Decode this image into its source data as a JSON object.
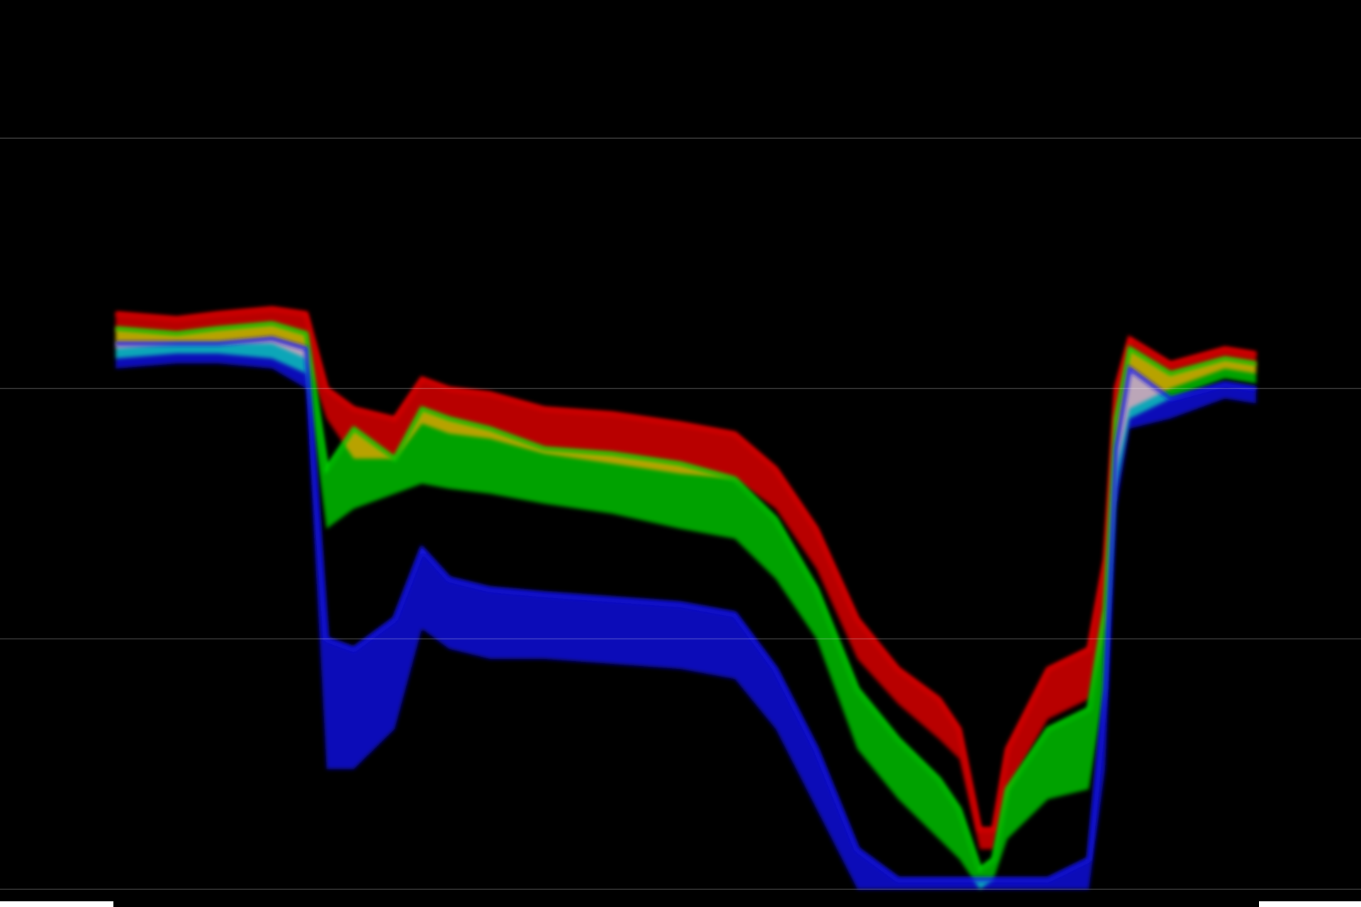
{
  "chart_data": {
    "type": "area",
    "title": "",
    "xlabel": "",
    "ylabel": "",
    "xlim": [
      0,
      1
    ],
    "ylim": [
      0,
      1
    ],
    "grid": true,
    "gridlines_y": [
      0.0,
      0.25,
      0.5,
      0.75
    ],
    "legend": "none",
    "series": [
      {
        "name": "",
        "color": "#ff0000",
        "lower": [
          [
            0.085,
            0.54
          ],
          [
            0.13,
            0.545
          ],
          [
            0.16,
            0.545
          ],
          [
            0.2,
            0.545
          ],
          [
            0.225,
            0.53
          ],
          [
            0.24,
            0.47
          ],
          [
            0.26,
            0.43
          ],
          [
            0.29,
            0.43
          ],
          [
            0.31,
            0.465
          ],
          [
            0.33,
            0.455
          ],
          [
            0.36,
            0.45
          ],
          [
            0.4,
            0.435
          ],
          [
            0.45,
            0.425
          ],
          [
            0.5,
            0.415
          ],
          [
            0.54,
            0.41
          ],
          [
            0.57,
            0.38
          ],
          [
            0.6,
            0.32
          ],
          [
            0.63,
            0.23
          ],
          [
            0.66,
            0.185
          ],
          [
            0.69,
            0.15
          ],
          [
            0.705,
            0.13
          ],
          [
            0.72,
            0.04
          ],
          [
            0.73,
            0.04
          ],
          [
            0.74,
            0.1
          ],
          [
            0.77,
            0.17
          ],
          [
            0.8,
            0.19
          ],
          [
            0.812,
            0.27
          ],
          [
            0.82,
            0.42
          ],
          [
            0.83,
            0.48
          ],
          [
            0.86,
            0.5
          ],
          [
            0.9,
            0.52
          ],
          [
            0.923,
            0.515
          ]
        ],
        "upper": [
          [
            0.085,
            0.575
          ],
          [
            0.13,
            0.57
          ],
          [
            0.16,
            0.575
          ],
          [
            0.2,
            0.58
          ],
          [
            0.225,
            0.575
          ],
          [
            0.24,
            0.5
          ],
          [
            0.26,
            0.48
          ],
          [
            0.29,
            0.47
          ],
          [
            0.31,
            0.51
          ],
          [
            0.33,
            0.5
          ],
          [
            0.36,
            0.495
          ],
          [
            0.4,
            0.48
          ],
          [
            0.45,
            0.475
          ],
          [
            0.5,
            0.465
          ],
          [
            0.54,
            0.455
          ],
          [
            0.57,
            0.42
          ],
          [
            0.6,
            0.36
          ],
          [
            0.63,
            0.27
          ],
          [
            0.66,
            0.22
          ],
          [
            0.69,
            0.19
          ],
          [
            0.705,
            0.16
          ],
          [
            0.72,
            0.06
          ],
          [
            0.73,
            0.06
          ],
          [
            0.74,
            0.14
          ],
          [
            0.77,
            0.22
          ],
          [
            0.8,
            0.24
          ],
          [
            0.812,
            0.33
          ],
          [
            0.82,
            0.5
          ],
          [
            0.83,
            0.55
          ],
          [
            0.86,
            0.525
          ],
          [
            0.9,
            0.54
          ],
          [
            0.923,
            0.535
          ]
        ]
      },
      {
        "name": "",
        "color": "#00e000",
        "lower": [
          [
            0.085,
            0.53
          ],
          [
            0.13,
            0.535
          ],
          [
            0.16,
            0.535
          ],
          [
            0.2,
            0.53
          ],
          [
            0.225,
            0.515
          ],
          [
            0.24,
            0.36
          ],
          [
            0.26,
            0.38
          ],
          [
            0.29,
            0.395
          ],
          [
            0.31,
            0.405
          ],
          [
            0.33,
            0.4
          ],
          [
            0.36,
            0.395
          ],
          [
            0.4,
            0.385
          ],
          [
            0.45,
            0.375
          ],
          [
            0.5,
            0.36
          ],
          [
            0.54,
            0.35
          ],
          [
            0.57,
            0.31
          ],
          [
            0.6,
            0.25
          ],
          [
            0.63,
            0.14
          ],
          [
            0.66,
            0.09
          ],
          [
            0.69,
            0.05
          ],
          [
            0.705,
            0.03
          ],
          [
            0.72,
            0.0
          ],
          [
            0.73,
            0.01
          ],
          [
            0.74,
            0.05
          ],
          [
            0.77,
            0.09
          ],
          [
            0.8,
            0.1
          ],
          [
            0.812,
            0.2
          ],
          [
            0.82,
            0.4
          ],
          [
            0.83,
            0.47
          ],
          [
            0.86,
            0.49
          ],
          [
            0.9,
            0.51
          ],
          [
            0.923,
            0.505
          ]
        ],
        "upper": [
          [
            0.085,
            0.56
          ],
          [
            0.13,
            0.555
          ],
          [
            0.16,
            0.56
          ],
          [
            0.2,
            0.565
          ],
          [
            0.225,
            0.555
          ],
          [
            0.24,
            0.42
          ],
          [
            0.26,
            0.46
          ],
          [
            0.29,
            0.43
          ],
          [
            0.31,
            0.48
          ],
          [
            0.33,
            0.47
          ],
          [
            0.36,
            0.46
          ],
          [
            0.4,
            0.44
          ],
          [
            0.45,
            0.435
          ],
          [
            0.5,
            0.425
          ],
          [
            0.54,
            0.41
          ],
          [
            0.57,
            0.37
          ],
          [
            0.6,
            0.3
          ],
          [
            0.63,
            0.2
          ],
          [
            0.66,
            0.15
          ],
          [
            0.69,
            0.11
          ],
          [
            0.705,
            0.08
          ],
          [
            0.72,
            0.02
          ],
          [
            0.73,
            0.03
          ],
          [
            0.74,
            0.1
          ],
          [
            0.77,
            0.16
          ],
          [
            0.8,
            0.18
          ],
          [
            0.812,
            0.28
          ],
          [
            0.82,
            0.47
          ],
          [
            0.83,
            0.54
          ],
          [
            0.86,
            0.515
          ],
          [
            0.9,
            0.53
          ],
          [
            0.923,
            0.525
          ]
        ]
      },
      {
        "name": "",
        "color": "#1414ff",
        "lower": [
          [
            0.085,
            0.52
          ],
          [
            0.13,
            0.525
          ],
          [
            0.16,
            0.525
          ],
          [
            0.2,
            0.52
          ],
          [
            0.225,
            0.5
          ],
          [
            0.24,
            0.12
          ],
          [
            0.26,
            0.12
          ],
          [
            0.29,
            0.16
          ],
          [
            0.31,
            0.26
          ],
          [
            0.33,
            0.24
          ],
          [
            0.36,
            0.23
          ],
          [
            0.4,
            0.23
          ],
          [
            0.45,
            0.225
          ],
          [
            0.5,
            0.22
          ],
          [
            0.54,
            0.21
          ],
          [
            0.57,
            0.16
          ],
          [
            0.6,
            0.08
          ],
          [
            0.63,
            0.0
          ],
          [
            0.66,
            0.0
          ],
          [
            0.69,
            0.0
          ],
          [
            0.705,
            0.0
          ],
          [
            0.72,
            0.0
          ],
          [
            0.73,
            0.0
          ],
          [
            0.74,
            0.0
          ],
          [
            0.77,
            0.0
          ],
          [
            0.8,
            0.0
          ],
          [
            0.812,
            0.12
          ],
          [
            0.82,
            0.38
          ],
          [
            0.83,
            0.46
          ],
          [
            0.86,
            0.47
          ],
          [
            0.9,
            0.49
          ],
          [
            0.923,
            0.485
          ]
        ],
        "upper": [
          [
            0.085,
            0.545
          ],
          [
            0.13,
            0.545
          ],
          [
            0.16,
            0.545
          ],
          [
            0.2,
            0.55
          ],
          [
            0.225,
            0.54
          ],
          [
            0.24,
            0.25
          ],
          [
            0.26,
            0.24
          ],
          [
            0.29,
            0.27
          ],
          [
            0.31,
            0.34
          ],
          [
            0.33,
            0.31
          ],
          [
            0.36,
            0.3
          ],
          [
            0.4,
            0.295
          ],
          [
            0.45,
            0.29
          ],
          [
            0.5,
            0.285
          ],
          [
            0.54,
            0.275
          ],
          [
            0.57,
            0.22
          ],
          [
            0.6,
            0.14
          ],
          [
            0.63,
            0.04
          ],
          [
            0.66,
            0.01
          ],
          [
            0.69,
            0.01
          ],
          [
            0.705,
            0.01
          ],
          [
            0.72,
            0.01
          ],
          [
            0.73,
            0.01
          ],
          [
            0.74,
            0.01
          ],
          [
            0.77,
            0.01
          ],
          [
            0.8,
            0.03
          ],
          [
            0.812,
            0.2
          ],
          [
            0.82,
            0.44
          ],
          [
            0.83,
            0.52
          ],
          [
            0.86,
            0.49
          ],
          [
            0.9,
            0.505
          ],
          [
            0.923,
            0.5
          ]
        ]
      }
    ]
  }
}
